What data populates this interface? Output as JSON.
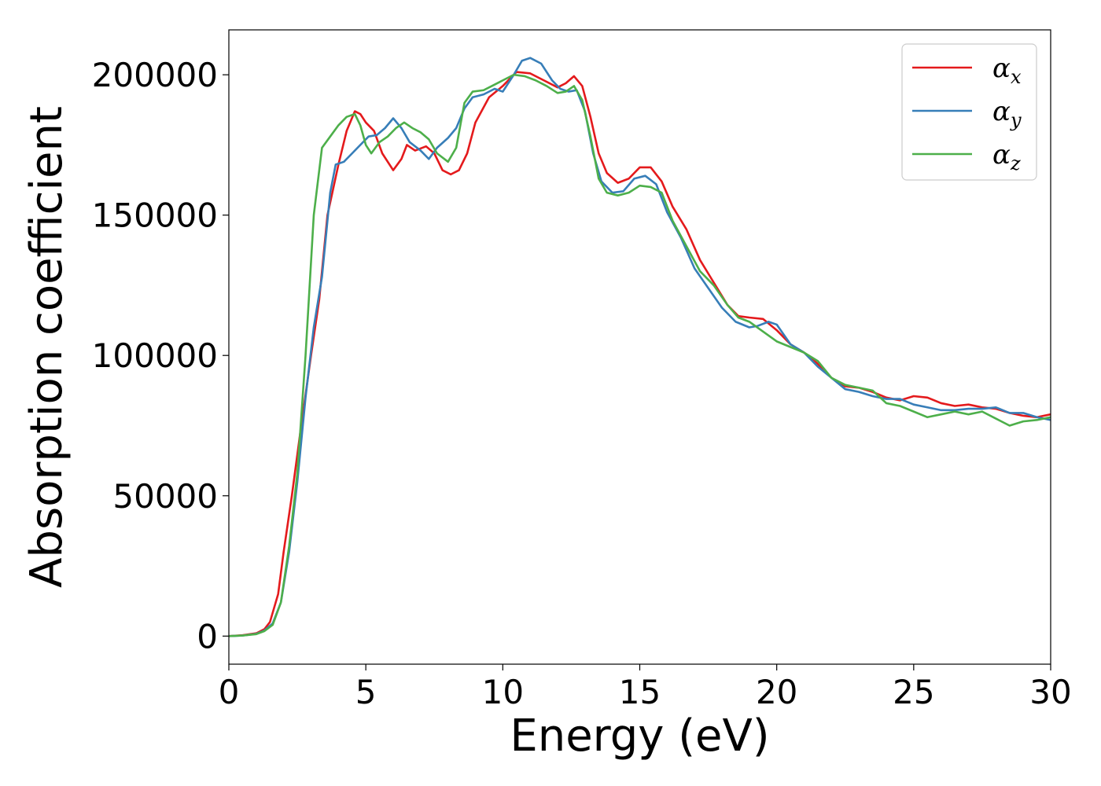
{
  "chart_data": {
    "type": "line",
    "xlabel": "Energy (eV)",
    "ylabel": "Absorption coefficient",
    "xlim": [
      0,
      30
    ],
    "ylim": [
      -10000,
      216000
    ],
    "xticks": [
      0,
      5,
      10,
      15,
      20,
      25,
      30
    ],
    "yticks": [
      0,
      50000,
      100000,
      150000,
      200000
    ],
    "xtick_labels": [
      "0",
      "5",
      "10",
      "15",
      "20",
      "25",
      "30"
    ],
    "ytick_labels": [
      "0",
      "50000",
      "100000",
      "150000",
      "200000"
    ],
    "grid": false,
    "legend_position": "top-right",
    "series": [
      {
        "name": "αx",
        "legend_base": "α",
        "legend_sub": "x",
        "color": "#e41a1c",
        "points": [
          [
            0,
            0
          ],
          [
            0.5,
            300
          ],
          [
            1,
            1000
          ],
          [
            1.3,
            2500
          ],
          [
            1.5,
            5000
          ],
          [
            1.8,
            15000
          ],
          [
            2,
            30000
          ],
          [
            2.3,
            50000
          ],
          [
            2.6,
            72000
          ],
          [
            3,
            100000
          ],
          [
            3.3,
            120000
          ],
          [
            3.6,
            150000
          ],
          [
            4,
            168000
          ],
          [
            4.3,
            180000
          ],
          [
            4.6,
            187000
          ],
          [
            4.8,
            186000
          ],
          [
            5,
            183000
          ],
          [
            5.3,
            180000
          ],
          [
            5.6,
            172000
          ],
          [
            6,
            166000
          ],
          [
            6.3,
            170000
          ],
          [
            6.5,
            175000
          ],
          [
            6.8,
            173000
          ],
          [
            7.2,
            174500
          ],
          [
            7.5,
            172000
          ],
          [
            7.8,
            166000
          ],
          [
            8.1,
            164500
          ],
          [
            8.4,
            166000
          ],
          [
            8.7,
            172000
          ],
          [
            9,
            183000
          ],
          [
            9.5,
            192000
          ],
          [
            10,
            196000
          ],
          [
            10.5,
            201000
          ],
          [
            11,
            200500
          ],
          [
            11.5,
            198000
          ],
          [
            12,
            195500
          ],
          [
            12.3,
            197000
          ],
          [
            12.6,
            199500
          ],
          [
            12.9,
            196000
          ],
          [
            13.2,
            185000
          ],
          [
            13.5,
            172000
          ],
          [
            13.8,
            165000
          ],
          [
            14.2,
            161500
          ],
          [
            14.6,
            163000
          ],
          [
            15,
            167000
          ],
          [
            15.4,
            167000
          ],
          [
            15.8,
            162000
          ],
          [
            16.2,
            153000
          ],
          [
            16.7,
            145000
          ],
          [
            17.2,
            134000
          ],
          [
            17.7,
            126000
          ],
          [
            18.2,
            118000
          ],
          [
            18.6,
            114000
          ],
          [
            19,
            113500
          ],
          [
            19.5,
            113000
          ],
          [
            20,
            109000
          ],
          [
            20.5,
            104000
          ],
          [
            21,
            101000
          ],
          [
            21.5,
            97000
          ],
          [
            22,
            92000
          ],
          [
            22.5,
            89000
          ],
          [
            23,
            88500
          ],
          [
            23.5,
            87000
          ],
          [
            24,
            85000
          ],
          [
            24.5,
            84000
          ],
          [
            25,
            85500
          ],
          [
            25.5,
            85000
          ],
          [
            26,
            83000
          ],
          [
            26.5,
            82000
          ],
          [
            27,
            82500
          ],
          [
            27.5,
            81500
          ],
          [
            28,
            81000
          ],
          [
            28.5,
            79500
          ],
          [
            29,
            78500
          ],
          [
            29.5,
            78000
          ],
          [
            30,
            79000
          ]
        ]
      },
      {
        "name": "αy",
        "legend_base": "α",
        "legend_sub": "y",
        "color": "#377eb8",
        "points": [
          [
            0,
            0
          ],
          [
            0.5,
            200
          ],
          [
            1,
            800
          ],
          [
            1.3,
            2000
          ],
          [
            1.6,
            4500
          ],
          [
            1.9,
            12000
          ],
          [
            2.2,
            30000
          ],
          [
            2.5,
            55000
          ],
          [
            2.8,
            85000
          ],
          [
            3.1,
            110000
          ],
          [
            3.4,
            128000
          ],
          [
            3.7,
            158000
          ],
          [
            3.9,
            168000
          ],
          [
            4.2,
            169000
          ],
          [
            4.5,
            172000
          ],
          [
            4.8,
            175000
          ],
          [
            5.1,
            178000
          ],
          [
            5.4,
            178500
          ],
          [
            5.7,
            181000
          ],
          [
            6,
            184500
          ],
          [
            6.3,
            181000
          ],
          [
            6.6,
            176000
          ],
          [
            7,
            173000
          ],
          [
            7.3,
            170000
          ],
          [
            7.6,
            174000
          ],
          [
            8,
            177500
          ],
          [
            8.3,
            181000
          ],
          [
            8.6,
            188000
          ],
          [
            8.9,
            192000
          ],
          [
            9.3,
            193000
          ],
          [
            9.7,
            195000
          ],
          [
            10,
            194000
          ],
          [
            10.4,
            200000
          ],
          [
            10.7,
            205000
          ],
          [
            11,
            206000
          ],
          [
            11.4,
            204000
          ],
          [
            11.8,
            198000
          ],
          [
            12.1,
            195000
          ],
          [
            12.4,
            194000
          ],
          [
            12.7,
            194500
          ],
          [
            13,
            187000
          ],
          [
            13.3,
            172000
          ],
          [
            13.6,
            162000
          ],
          [
            14,
            158000
          ],
          [
            14.4,
            158500
          ],
          [
            14.8,
            163000
          ],
          [
            15.2,
            164000
          ],
          [
            15.6,
            161000
          ],
          [
            16,
            151000
          ],
          [
            16.5,
            142000
          ],
          [
            17,
            131000
          ],
          [
            17.5,
            124000
          ],
          [
            18,
            117000
          ],
          [
            18.5,
            112000
          ],
          [
            19,
            110000
          ],
          [
            19.3,
            110500
          ],
          [
            19.7,
            112000
          ],
          [
            20,
            111000
          ],
          [
            20.5,
            104000
          ],
          [
            21,
            101000
          ],
          [
            21.5,
            96000
          ],
          [
            22,
            92000
          ],
          [
            22.5,
            88000
          ],
          [
            23,
            87000
          ],
          [
            23.5,
            85500
          ],
          [
            24,
            84500
          ],
          [
            24.5,
            84500
          ],
          [
            25,
            82500
          ],
          [
            25.5,
            81500
          ],
          [
            26,
            80500
          ],
          [
            26.5,
            80500
          ],
          [
            27,
            81000
          ],
          [
            27.5,
            81000
          ],
          [
            28,
            81500
          ],
          [
            28.5,
            79500
          ],
          [
            29,
            79500
          ],
          [
            29.5,
            78000
          ],
          [
            30,
            77000
          ]
        ]
      },
      {
        "name": "αz",
        "legend_base": "α",
        "legend_sub": "z",
        "color": "#4daf4a",
        "points": [
          [
            0,
            0
          ],
          [
            0.5,
            200
          ],
          [
            1,
            700
          ],
          [
            1.3,
            1800
          ],
          [
            1.6,
            4000
          ],
          [
            1.9,
            12000
          ],
          [
            2.2,
            32000
          ],
          [
            2.5,
            58000
          ],
          [
            2.8,
            100000
          ],
          [
            3.1,
            150000
          ],
          [
            3.4,
            174000
          ],
          [
            3.7,
            178000
          ],
          [
            4,
            182000
          ],
          [
            4.3,
            185000
          ],
          [
            4.6,
            186000
          ],
          [
            4.8,
            182000
          ],
          [
            5,
            175000
          ],
          [
            5.2,
            172000
          ],
          [
            5.5,
            176000
          ],
          [
            5.8,
            178000
          ],
          [
            6.1,
            181000
          ],
          [
            6.4,
            183000
          ],
          [
            6.7,
            181000
          ],
          [
            7,
            179500
          ],
          [
            7.3,
            177000
          ],
          [
            7.6,
            172000
          ],
          [
            8,
            169000
          ],
          [
            8.3,
            174000
          ],
          [
            8.6,
            190000
          ],
          [
            8.9,
            194000
          ],
          [
            9.3,
            194500
          ],
          [
            9.6,
            196000
          ],
          [
            10,
            198000
          ],
          [
            10.4,
            200000
          ],
          [
            10.8,
            199500
          ],
          [
            11.2,
            198000
          ],
          [
            11.6,
            196000
          ],
          [
            12,
            193500
          ],
          [
            12.3,
            194000
          ],
          [
            12.6,
            196000
          ],
          [
            12.9,
            191000
          ],
          [
            13.2,
            178000
          ],
          [
            13.5,
            163000
          ],
          [
            13.8,
            158000
          ],
          [
            14.2,
            157000
          ],
          [
            14.6,
            158000
          ],
          [
            15,
            160500
          ],
          [
            15.4,
            160000
          ],
          [
            15.8,
            158000
          ],
          [
            16.2,
            148000
          ],
          [
            16.7,
            139000
          ],
          [
            17.2,
            130000
          ],
          [
            17.7,
            125000
          ],
          [
            18.2,
            118000
          ],
          [
            18.6,
            113500
          ],
          [
            19,
            112000
          ],
          [
            19.5,
            108500
          ],
          [
            20,
            105000
          ],
          [
            20.5,
            103000
          ],
          [
            21,
            101000
          ],
          [
            21.5,
            98000
          ],
          [
            22,
            92000
          ],
          [
            22.5,
            89500
          ],
          [
            23,
            88500
          ],
          [
            23.5,
            87500
          ],
          [
            24,
            83000
          ],
          [
            24.5,
            82000
          ],
          [
            25,
            80000
          ],
          [
            25.5,
            78000
          ],
          [
            26,
            79000
          ],
          [
            26.5,
            80000
          ],
          [
            27,
            79000
          ],
          [
            27.5,
            80000
          ],
          [
            28,
            77500
          ],
          [
            28.5,
            75000
          ],
          [
            29,
            76500
          ],
          [
            29.5,
            77000
          ],
          [
            30,
            78000
          ]
        ]
      }
    ]
  }
}
